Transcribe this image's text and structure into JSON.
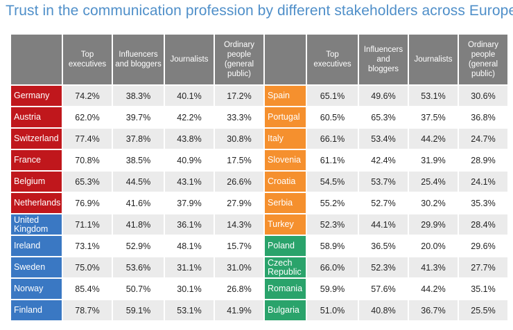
{
  "title": "Trust in the communication profession by different stakeholders across Europe",
  "colors": {
    "red": "#c0171c",
    "blue": "#3a78c3",
    "orange": "#f5902e",
    "green": "#2aa36b",
    "header": "#7f7f7f",
    "title": "#4f8fc9"
  },
  "chart_data": {
    "type": "table",
    "title": "Trust in the communication profession by different stakeholders across Europe",
    "columns": [
      "Top executives",
      "Influencers and bloggers",
      "Journalists",
      "Ordinary people (general public)"
    ],
    "left": [
      {
        "country": "Germany",
        "group": "red",
        "values": [
          "74.2%",
          "38.3%",
          "40.1%",
          "17.2%"
        ]
      },
      {
        "country": "Austria",
        "group": "red",
        "values": [
          "62.0%",
          "39.7%",
          "42.2%",
          "33.3%"
        ]
      },
      {
        "country": "Switzerland",
        "group": "red",
        "values": [
          "77.4%",
          "37.8%",
          "43.8%",
          "30.8%"
        ]
      },
      {
        "country": "France",
        "group": "red",
        "values": [
          "70.8%",
          "38.5%",
          "40.9%",
          "17.5%"
        ]
      },
      {
        "country": "Belgium",
        "group": "red",
        "values": [
          "65.3%",
          "44.5%",
          "43.1%",
          "26.6%"
        ]
      },
      {
        "country": "Netherlands",
        "group": "red",
        "values": [
          "76.9%",
          "41.6%",
          "37.9%",
          "27.9%"
        ]
      },
      {
        "country": "United Kingdom",
        "group": "blue",
        "values": [
          "71.1%",
          "41.8%",
          "36.1%",
          "14.3%"
        ]
      },
      {
        "country": "Ireland",
        "group": "blue",
        "values": [
          "73.1%",
          "52.9%",
          "48.1%",
          "15.7%"
        ]
      },
      {
        "country": "Sweden",
        "group": "blue",
        "values": [
          "75.0%",
          "53.6%",
          "31.1%",
          "31.0%"
        ]
      },
      {
        "country": "Norway",
        "group": "blue",
        "values": [
          "85.4%",
          "50.7%",
          "30.1%",
          "26.8%"
        ]
      },
      {
        "country": "Finland",
        "group": "blue",
        "values": [
          "78.7%",
          "59.1%",
          "53.1%",
          "41.9%"
        ]
      }
    ],
    "right": [
      {
        "country": "Spain",
        "group": "orange",
        "values": [
          "65.1%",
          "49.6%",
          "53.1%",
          "30.6%"
        ]
      },
      {
        "country": "Portugal",
        "group": "orange",
        "values": [
          "60.5%",
          "65.3%",
          "37.5%",
          "36.8%"
        ]
      },
      {
        "country": "Italy",
        "group": "orange",
        "values": [
          "66.1%",
          "53.4%",
          "44.2%",
          "24.7%"
        ]
      },
      {
        "country": "Slovenia",
        "group": "orange",
        "values": [
          "61.1%",
          "42.4%",
          "31.9%",
          "28.9%"
        ]
      },
      {
        "country": "Croatia",
        "group": "orange",
        "values": [
          "54.5%",
          "53.7%",
          "25.4%",
          "24.1%"
        ]
      },
      {
        "country": "Serbia",
        "group": "orange",
        "values": [
          "55.2%",
          "52.7%",
          "30.2%",
          "35.3%"
        ]
      },
      {
        "country": "Turkey",
        "group": "orange",
        "values": [
          "52.3%",
          "44.1%",
          "29.9%",
          "28.4%"
        ]
      },
      {
        "country": "Poland",
        "group": "green",
        "values": [
          "58.9%",
          "36.5%",
          "20.0%",
          "29.6%"
        ]
      },
      {
        "country": "Czech Republic",
        "group": "green",
        "values": [
          "66.0%",
          "52.3%",
          "41.3%",
          "27.7%"
        ]
      },
      {
        "country": "Romania",
        "group": "green",
        "values": [
          "59.9%",
          "57.6%",
          "44.2%",
          "35.1%"
        ]
      },
      {
        "country": "Bulgaria",
        "group": "green",
        "values": [
          "51.0%",
          "40.8%",
          "36.7%",
          "25.5%"
        ]
      }
    ]
  }
}
